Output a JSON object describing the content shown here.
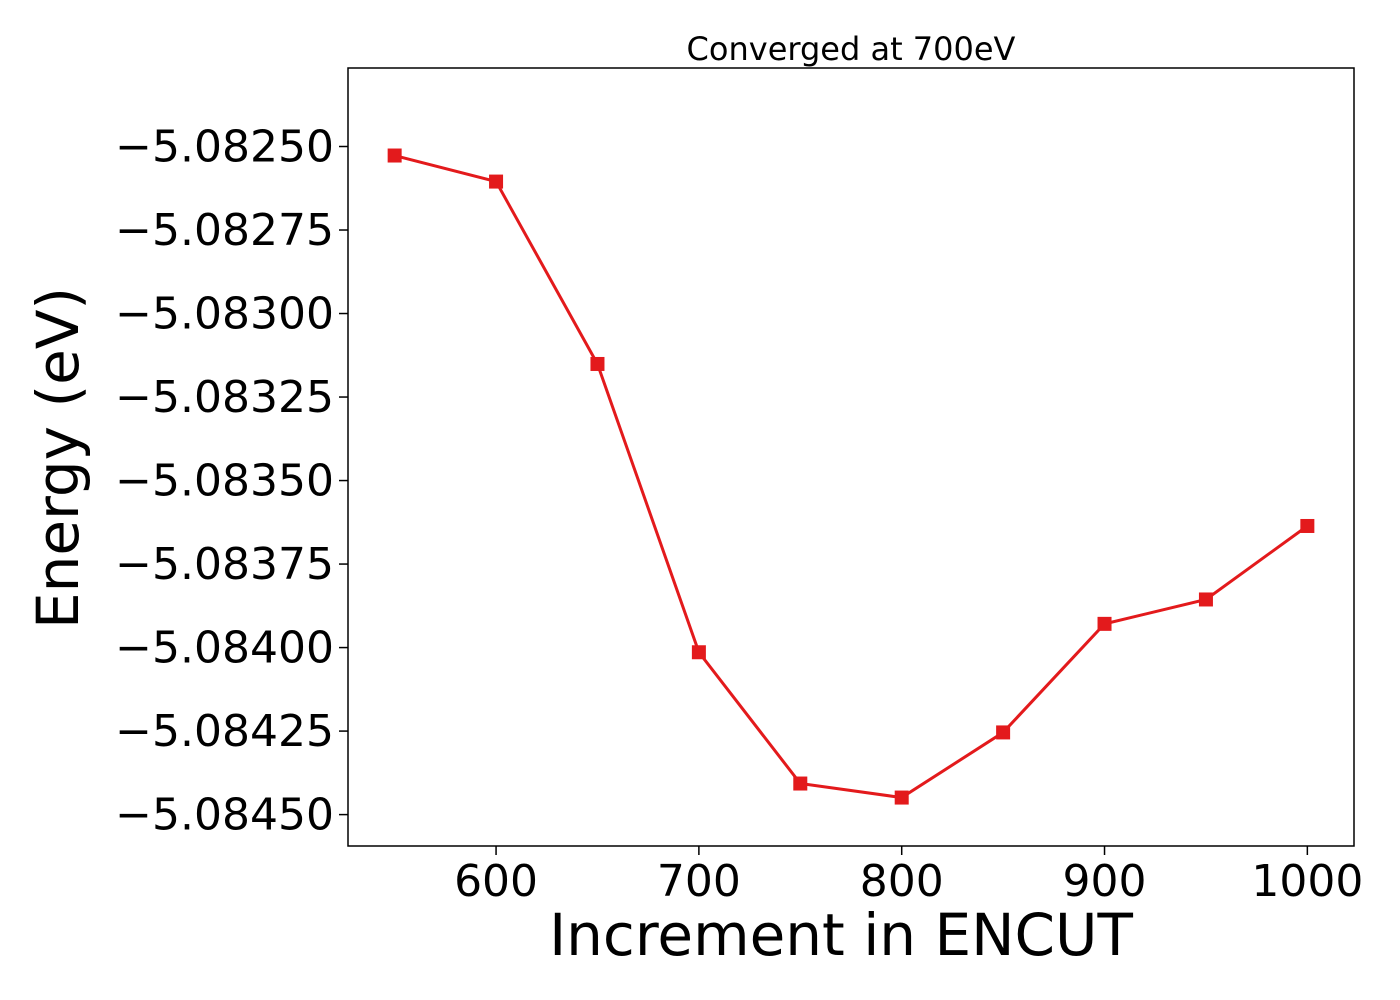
{
  "chart_data": {
    "type": "line",
    "title": "Converged at 700eV",
    "xlabel": "Increment in ENCUT",
    "ylabel": "Energy (eV)",
    "xlim": [
      527,
      1023
    ],
    "ylim": [
      -5.084594,
      -5.082265
    ],
    "x_ticks": [
      600,
      700,
      800,
      900,
      1000
    ],
    "x_tick_labels": [
      "600",
      "700",
      "800",
      "900",
      "1000"
    ],
    "y_ticks": [
      -5.0825,
      -5.08275,
      -5.083,
      -5.08325,
      -5.0835,
      -5.08375,
      -5.084,
      -5.08425,
      -5.0845
    ],
    "y_tick_labels": [
      "−5.08250",
      "−5.08275",
      "−5.08300",
      "−5.08325",
      "−5.08350",
      "−5.08375",
      "−5.08400",
      "−5.08425",
      "−5.08450"
    ],
    "grid": false,
    "color": "#e31a1c",
    "marker": "square",
    "series": [
      {
        "x": [
          550,
          600,
          650,
          700,
          750,
          800,
          850,
          900,
          950,
          1000
        ],
        "y": [
          -5.082527,
          -5.082605,
          -5.083151,
          -5.084014,
          -5.084407,
          -5.084449,
          -5.084254,
          -5.083929,
          -5.083856,
          -5.083636
        ]
      }
    ]
  }
}
